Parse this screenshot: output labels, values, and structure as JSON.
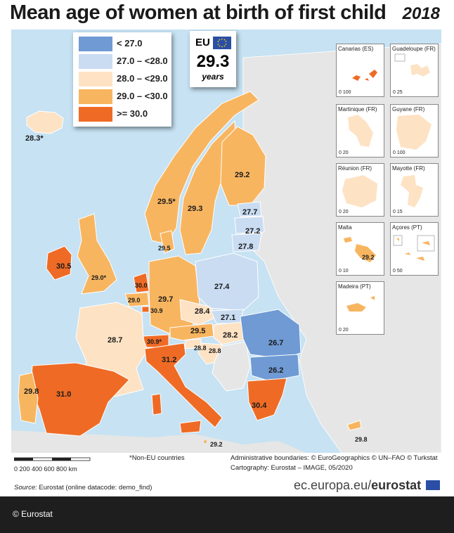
{
  "title": "Mean age of women at birth of first child",
  "year": "2018",
  "legend": [
    {
      "label": "< 27.0",
      "color": "#6f9ad4"
    },
    {
      "label": "27.0 – <28.0",
      "color": "#c9dcf2"
    },
    {
      "label": "28.0 – <29.0",
      "color": "#fde2c4"
    },
    {
      "label": "29.0 – <30.0",
      "color": "#f8b560"
    },
    {
      "label": ">= 30.0",
      "color": "#ef6b25"
    }
  ],
  "eu": {
    "label": "EU",
    "value": "29.3",
    "unit": "years"
  },
  "countries": [
    {
      "name": "Iceland",
      "value": "28.3*"
    },
    {
      "name": "Norway",
      "value": "29.5*"
    },
    {
      "name": "Sweden",
      "value": "29.3"
    },
    {
      "name": "Finland",
      "value": "29.2"
    },
    {
      "name": "Estonia",
      "value": "27.7"
    },
    {
      "name": "Latvia",
      "value": "27.2"
    },
    {
      "name": "Lithuania",
      "value": "27.8"
    },
    {
      "name": "Denmark",
      "value": "29.5"
    },
    {
      "name": "Ireland",
      "value": "30.5"
    },
    {
      "name": "United Kingdom",
      "value": "29.0*"
    },
    {
      "name": "Netherlands",
      "value": "30.0"
    },
    {
      "name": "Belgium",
      "value": "29.0"
    },
    {
      "name": "Luxembourg",
      "value": "30.9"
    },
    {
      "name": "Germany",
      "value": "29.7"
    },
    {
      "name": "Poland",
      "value": "27.4"
    },
    {
      "name": "Czechia",
      "value": "28.4"
    },
    {
      "name": "Slovakia",
      "value": "27.1"
    },
    {
      "name": "Hungary",
      "value": "28.2"
    },
    {
      "name": "Austria",
      "value": "29.5"
    },
    {
      "name": "Switzerland",
      "value": "30.9*"
    },
    {
      "name": "Slovenia",
      "value": "28.8"
    },
    {
      "name": "Croatia",
      "value": "28.8"
    },
    {
      "name": "France",
      "value": "28.7"
    },
    {
      "name": "Romania",
      "value": "26.7"
    },
    {
      "name": "Bulgaria",
      "value": "26.2"
    },
    {
      "name": "Italy",
      "value": "31.2"
    },
    {
      "name": "Portugal",
      "value": "29.8"
    },
    {
      "name": "Spain",
      "value": "31.0"
    },
    {
      "name": "Greece",
      "value": "30.4"
    },
    {
      "name": "Malta",
      "value": "29.2"
    },
    {
      "name": "Cyprus",
      "value": "29.8"
    }
  ],
  "insets": [
    {
      "name": "Canarias (ES)",
      "scale": "0  100",
      "value": ""
    },
    {
      "name": "Guadeloupe (FR)",
      "scale": "0  25",
      "value": ""
    },
    {
      "name": "Martinique (FR)",
      "scale": "0  20",
      "value": ""
    },
    {
      "name": "Guyane (FR)",
      "scale": "0  100",
      "value": ""
    },
    {
      "name": "Réunion (FR)",
      "scale": "0  20",
      "value": ""
    },
    {
      "name": "Mayotte (FR)",
      "scale": "0  15",
      "value": ""
    },
    {
      "name": "Malta",
      "scale": "0  10",
      "value": "29.2"
    },
    {
      "name": "Açores (PT)",
      "scale": "0  50",
      "value": ""
    },
    {
      "name": "Madeira (PT)",
      "scale": "0  20",
      "value": ""
    }
  ],
  "footer": {
    "scale_ticks": "0    200   400   600   800 km",
    "non_eu_note": "*Non-EU countries",
    "admin_boundaries": "Administrative boundaries: © EuroGeographics © UN–FAO © Turkstat",
    "cartography": "Cartography: Eurostat – IMAGE, 05/2020",
    "source_label": "Source:",
    "source_text": " Eurostat (online datacode: demo_find)",
    "brand_plain": "ec.europa.eu/",
    "brand_bold": "eurostat",
    "copyright": "© Eurostat"
  }
}
